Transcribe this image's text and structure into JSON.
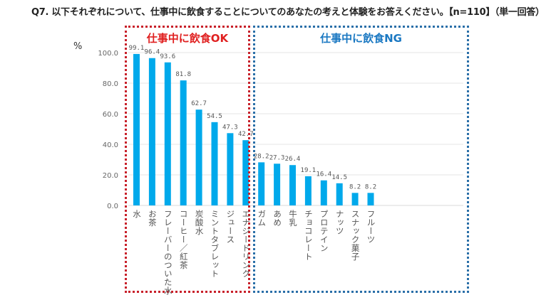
{
  "title": "Q7. 以下それぞれについて、仕事中に飲食することについてのあなたの考えと体験をお答えください。【n=110】（単一回答）",
  "groups": {
    "ok_label": "仕事中に飲食OK",
    "ng_label": "仕事中に飲食NG",
    "ok_color": "#e02020",
    "ng_color": "#1a78c2"
  },
  "colors": {
    "bar": "#00a9eb",
    "grid": "#e6e6e6"
  },
  "chart_data": {
    "type": "bar",
    "title": "Q7. 以下それぞれについて、仕事中に飲食することについてのあなたの考えと体験をお答えください。【n=110】（単一回答）",
    "ylabel": "%",
    "xlabel": "",
    "ylim": [
      0,
      100
    ],
    "yticks": [
      "0.0",
      "20.0",
      "40.0",
      "60.0",
      "80.0",
      "100.0"
    ],
    "ytick_values": [
      0,
      20,
      40,
      60,
      80,
      100
    ],
    "grid": true,
    "categories": [
      "水",
      "お茶",
      "フレーバーのついた水",
      "コーヒー／紅茶",
      "炭酸水",
      "ミントタブレット",
      "ジュース",
      "エナジードリンク",
      "ガム",
      "あめ",
      "牛乳",
      "チョコレート",
      "プロテイン",
      "ナッツ",
      "スナック菓子",
      "フルーツ"
    ],
    "values": [
      99.1,
      96.4,
      93.6,
      81.8,
      62.7,
      54.5,
      47.3,
      42.7,
      28.2,
      27.3,
      26.4,
      19.1,
      16.4,
      14.5,
      8.2,
      8.2
    ],
    "value_labels": [
      "99.1",
      "96.4",
      "93.6",
      "81.8",
      "62.7",
      "54.5",
      "47.3",
      "42.7",
      "28.2",
      "27.3",
      "26.4",
      "19.1",
      "16.4",
      "14.5",
      "8.2",
      "8.2"
    ],
    "group_assignment": [
      "ok",
      "ok",
      "ok",
      "ok",
      "ok",
      "ok",
      "ng",
      "ng",
      "ng",
      "ng",
      "ng",
      "ng",
      "ng",
      "ng",
      "ng",
      "ng"
    ]
  }
}
